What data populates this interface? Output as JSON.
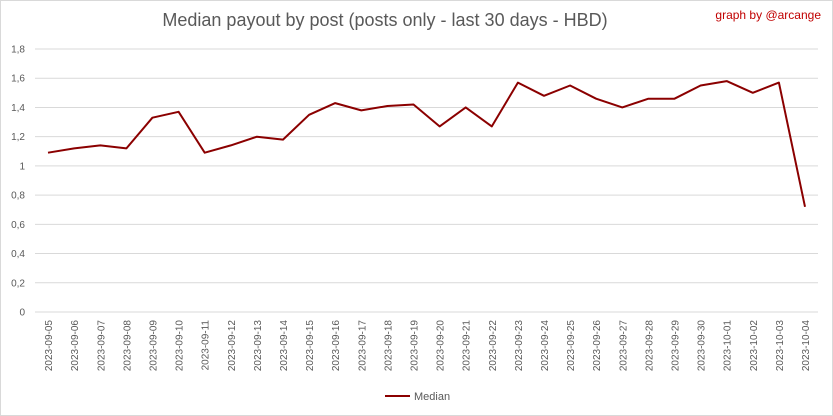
{
  "chart_data": {
    "type": "line",
    "title": "Median payout by post (posts only - last 30 days - HBD)",
    "credit": "graph by @arcange",
    "categories": [
      "2023-09-05",
      "2023-09-06",
      "2023-09-07",
      "2023-09-08",
      "2023-09-09",
      "2023-09-10",
      "2023-09-11",
      "2023-09-12",
      "2023-09-13",
      "2023-09-14",
      "2023-09-15",
      "2023-09-16",
      "2023-09-17",
      "2023-09-18",
      "2023-09-19",
      "2023-09-20",
      "2023-09-21",
      "2023-09-22",
      "2023-09-23",
      "2023-09-24",
      "2023-09-25",
      "2023-09-26",
      "2023-09-27",
      "2023-09-28",
      "2023-09-29",
      "2023-09-30",
      "2023-10-01",
      "2023-10-02",
      "2023-10-03",
      "2023-10-04"
    ],
    "series": [
      {
        "name": "Median",
        "color": "#8b0000",
        "values": [
          1.09,
          1.12,
          1.14,
          1.12,
          1.33,
          1.37,
          1.09,
          1.14,
          1.2,
          1.18,
          1.35,
          1.43,
          1.38,
          1.41,
          1.42,
          1.27,
          1.4,
          1.27,
          1.57,
          1.48,
          1.55,
          1.46,
          1.4,
          1.46,
          1.46,
          1.55,
          1.58,
          1.5,
          1.57,
          0.72
        ]
      }
    ],
    "ylim": [
      0,
      1.8
    ],
    "yticks": [
      "0",
      "0,2",
      "0,4",
      "0,6",
      "0,8",
      "1",
      "1,2",
      "1,4",
      "1,6",
      "1,8"
    ],
    "grid": true,
    "legend": "bottom"
  }
}
